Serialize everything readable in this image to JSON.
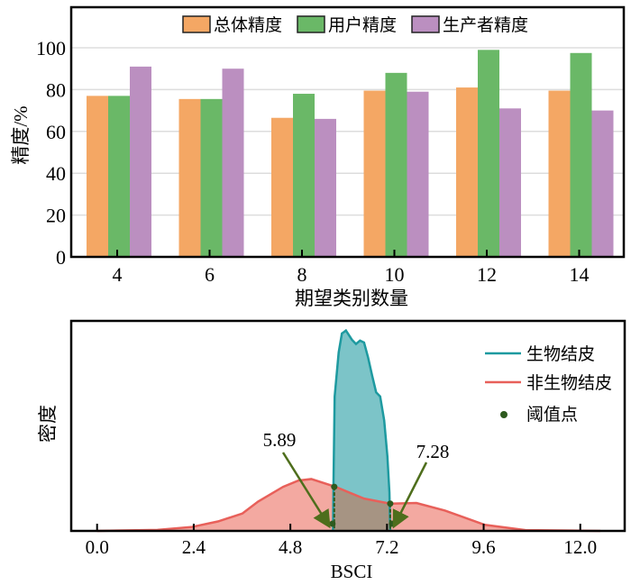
{
  "chart_data": [
    {
      "type": "bar",
      "categories": [
        "4",
        "6",
        "8",
        "10",
        "12",
        "14"
      ],
      "series": [
        {
          "name": "总体精度",
          "color": "#f4a764",
          "values": [
            77,
            75.5,
            66.5,
            79.5,
            81,
            79.5
          ]
        },
        {
          "name": "用户精度",
          "color": "#6ab867",
          "values": [
            77,
            75.5,
            78,
            88,
            99,
            97.5
          ]
        },
        {
          "name": "生产者精度",
          "color": "#bb8fc0",
          "values": [
            91,
            90,
            66,
            79,
            71,
            70
          ]
        }
      ],
      "xlabel": "期望类别数量",
      "ylabel": "精度/%",
      "ylim": [
        0,
        115
      ],
      "yticks": [
        "0",
        "20",
        "40",
        "60",
        "80",
        "100"
      ],
      "grid": true,
      "legend": "top-center"
    },
    {
      "type": "area",
      "xlabel": "BSCI",
      "ylabel": "密度",
      "xlim": [
        -0.6,
        13.2
      ],
      "ylim": [
        0,
        1
      ],
      "xticks": [
        "0.0",
        "2.4",
        "4.8",
        "7.2",
        "9.6",
        "12.0"
      ],
      "series": [
        {
          "name": "生物结皮",
          "color": "#1e9aa0",
          "fill": "#7cc4c8",
          "x": [
            5.86,
            5.87,
            5.9,
            6.0,
            6.08,
            6.18,
            6.33,
            6.43,
            6.53,
            6.63,
            6.73,
            6.83,
            6.93,
            7.03,
            7.13,
            7.21,
            7.26,
            7.28
          ],
          "y": [
            0,
            0.21,
            0.64,
            0.85,
            0.94,
            0.954,
            0.91,
            0.89,
            0.906,
            0.897,
            0.826,
            0.74,
            0.66,
            0.64,
            0.526,
            0.354,
            0.183,
            0
          ]
        },
        {
          "name": "非生物结皮",
          "color": "#e8605a",
          "fill": "#f19a90",
          "x": [
            0,
            1.5,
            2.36,
            3.0,
            3.61,
            4.0,
            4.62,
            5.0,
            5.32,
            5.92,
            6.63,
            7.28,
            7.93,
            8.64,
            9.63,
            10.64,
            12.5
          ],
          "y": [
            0,
            0.005,
            0.019,
            0.045,
            0.083,
            0.14,
            0.21,
            0.24,
            0.247,
            0.21,
            0.154,
            0.13,
            0.133,
            0.097,
            0.029,
            0.004,
            0
          ]
        }
      ],
      "thresholds": {
        "name": "阈值点",
        "color": "#2d5a1e",
        "points": [
          {
            "x": 5.89,
            "y": 0.21,
            "label": "5.89"
          },
          {
            "x": 7.28,
            "y": 0.13,
            "label": "7.28"
          }
        ]
      },
      "legend": "top-right"
    }
  ]
}
